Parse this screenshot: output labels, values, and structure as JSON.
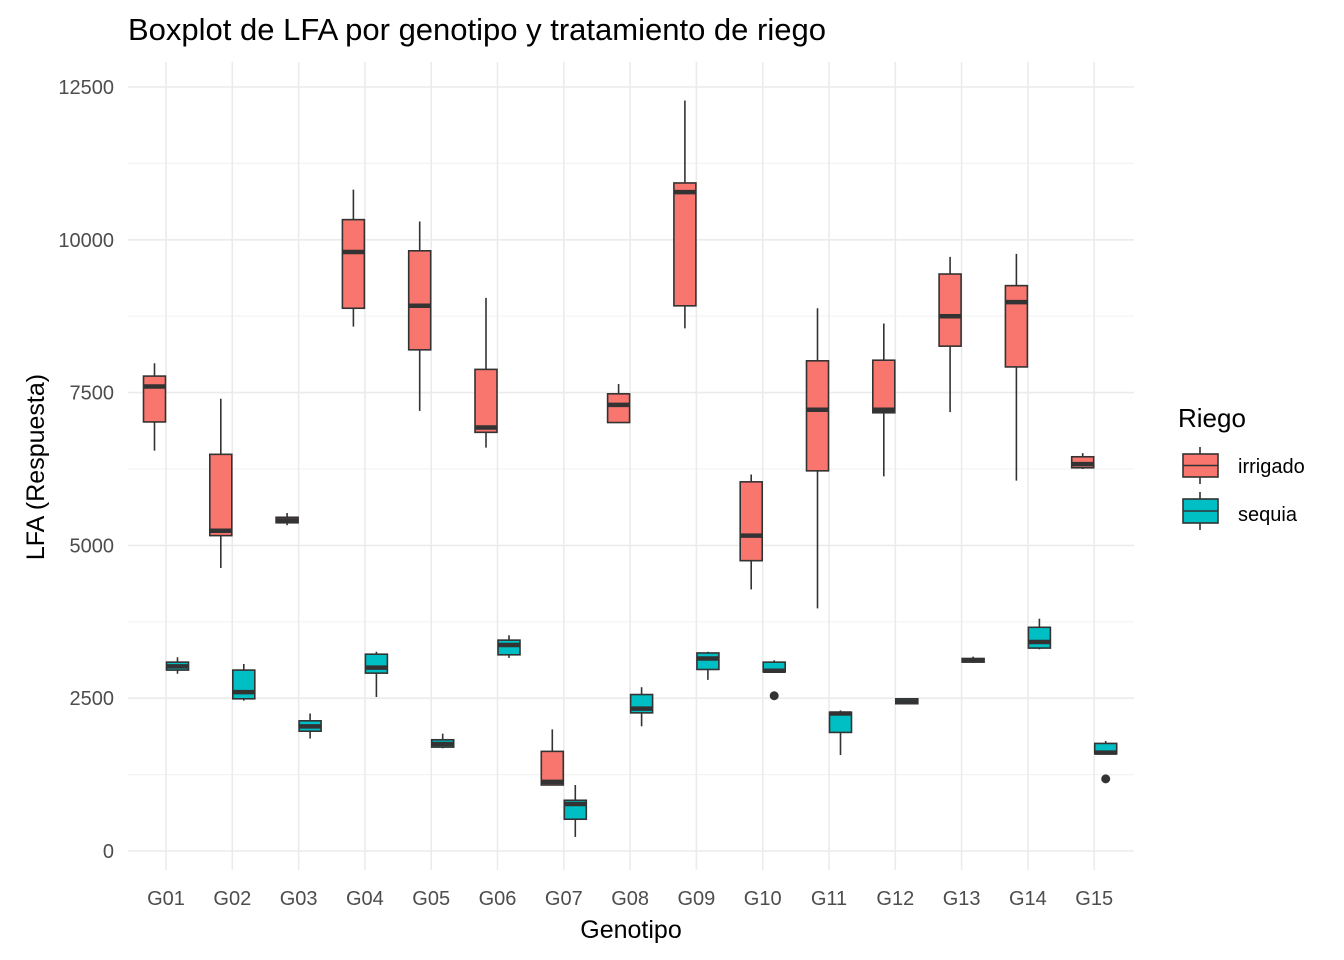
{
  "chart_data": {
    "type": "boxplot",
    "title": "Boxplot de LFA por genotipo y tratamiento de riego",
    "xlabel": "Genotipo",
    "ylabel": "LFA (Respuesta)",
    "ylim": [
      -300,
      13000
    ],
    "yticks": [
      0,
      2500,
      5000,
      7500,
      10000,
      12500
    ],
    "y_tick_labels": [
      "0",
      "2500",
      "5000",
      "7500",
      "10000",
      "12500"
    ],
    "grid": true,
    "legend_position": "right",
    "categories": [
      "G01",
      "G02",
      "G03",
      "G04",
      "G05",
      "G06",
      "G07",
      "G08",
      "G09",
      "G10",
      "G11",
      "G12",
      "G13",
      "G14",
      "G15"
    ],
    "legend": {
      "title": "Riego",
      "entries": [
        {
          "label": "irrigado",
          "color": "#F8766D"
        },
        {
          "label": "sequia",
          "color": "#00BFC4"
        }
      ]
    },
    "colors": {
      "irrigado": "#F8766D",
      "sequia": "#00BFC4",
      "line": "#333333",
      "grid": "#ebebeb"
    },
    "boxes": [
      {
        "category": "G01",
        "group": "irrigado",
        "min": 6550,
        "q1": 7020,
        "median": 7600,
        "q3": 7770,
        "max": 7980,
        "outliers": []
      },
      {
        "category": "G01",
        "group": "sequia",
        "min": 2900,
        "q1": 2960,
        "median": 3020,
        "q3": 3090,
        "max": 3170,
        "outliers": []
      },
      {
        "category": "G02",
        "group": "irrigado",
        "min": 4630,
        "q1": 5160,
        "median": 5240,
        "q3": 6490,
        "max": 7400,
        "outliers": []
      },
      {
        "category": "G02",
        "group": "sequia",
        "min": 2460,
        "q1": 2490,
        "median": 2600,
        "q3": 2960,
        "max": 3060,
        "outliers": []
      },
      {
        "category": "G03",
        "group": "irrigado",
        "min": 5330,
        "q1": 5370,
        "median": 5410,
        "q3": 5460,
        "max": 5530,
        "outliers": []
      },
      {
        "category": "G03",
        "group": "sequia",
        "min": 1840,
        "q1": 1960,
        "median": 2040,
        "q3": 2130,
        "max": 2250,
        "outliers": []
      },
      {
        "category": "G04",
        "group": "irrigado",
        "min": 8580,
        "q1": 8880,
        "median": 9800,
        "q3": 10330,
        "max": 10820,
        "outliers": []
      },
      {
        "category": "G04",
        "group": "sequia",
        "min": 2520,
        "q1": 2910,
        "median": 3000,
        "q3": 3220,
        "max": 3260,
        "outliers": []
      },
      {
        "category": "G05",
        "group": "irrigado",
        "min": 7200,
        "q1": 8200,
        "median": 8920,
        "q3": 9820,
        "max": 10300,
        "outliers": []
      },
      {
        "category": "G05",
        "group": "sequia",
        "min": 1680,
        "q1": 1700,
        "median": 1750,
        "q3": 1820,
        "max": 1920,
        "outliers": []
      },
      {
        "category": "G06",
        "group": "irrigado",
        "min": 6600,
        "q1": 6850,
        "median": 6930,
        "q3": 7880,
        "max": 9050,
        "outliers": []
      },
      {
        "category": "G06",
        "group": "sequia",
        "min": 3160,
        "q1": 3210,
        "median": 3370,
        "q3": 3450,
        "max": 3530,
        "outliers": []
      },
      {
        "category": "G07",
        "group": "irrigado",
        "min": 1080,
        "q1": 1080,
        "median": 1130,
        "q3": 1630,
        "max": 1990,
        "outliers": []
      },
      {
        "category": "G07",
        "group": "sequia",
        "min": 230,
        "q1": 520,
        "median": 770,
        "q3": 830,
        "max": 1080,
        "outliers": []
      },
      {
        "category": "G08",
        "group": "irrigado",
        "min": 7010,
        "q1": 7010,
        "median": 7300,
        "q3": 7480,
        "max": 7640,
        "outliers": []
      },
      {
        "category": "G08",
        "group": "sequia",
        "min": 2040,
        "q1": 2260,
        "median": 2330,
        "q3": 2560,
        "max": 2680,
        "outliers": []
      },
      {
        "category": "G09",
        "group": "irrigado",
        "min": 8550,
        "q1": 8920,
        "median": 10780,
        "q3": 10930,
        "max": 12280,
        "outliers": []
      },
      {
        "category": "G09",
        "group": "sequia",
        "min": 2800,
        "q1": 2970,
        "median": 3150,
        "q3": 3240,
        "max": 3260,
        "outliers": []
      },
      {
        "category": "G10",
        "group": "irrigado",
        "min": 4280,
        "q1": 4750,
        "median": 5160,
        "q3": 6040,
        "max": 6160,
        "outliers": []
      },
      {
        "category": "G10",
        "group": "sequia",
        "min": 2930,
        "q1": 2930,
        "median": 2950,
        "q3": 3090,
        "max": 3120,
        "outliers": [
          2540
        ]
      },
      {
        "category": "G11",
        "group": "irrigado",
        "min": 3970,
        "q1": 6220,
        "median": 7220,
        "q3": 8020,
        "max": 8880,
        "outliers": []
      },
      {
        "category": "G11",
        "group": "sequia",
        "min": 1570,
        "q1": 1940,
        "median": 2250,
        "q3": 2270,
        "max": 2300,
        "outliers": []
      },
      {
        "category": "G12",
        "group": "irrigado",
        "min": 6130,
        "q1": 7170,
        "median": 7220,
        "q3": 8030,
        "max": 8630,
        "outliers": []
      },
      {
        "category": "G12",
        "group": "sequia",
        "min": 2400,
        "q1": 2410,
        "median": 2440,
        "q3": 2490,
        "max": 2500,
        "outliers": []
      },
      {
        "category": "G13",
        "group": "irrigado",
        "min": 7180,
        "q1": 8260,
        "median": 8750,
        "q3": 9440,
        "max": 9720,
        "outliers": []
      },
      {
        "category": "G13",
        "group": "sequia",
        "min": 3080,
        "q1": 3090,
        "median": 3120,
        "q3": 3150,
        "max": 3180,
        "outliers": []
      },
      {
        "category": "G14",
        "group": "irrigado",
        "min": 6060,
        "q1": 7920,
        "median": 8980,
        "q3": 9250,
        "max": 9770,
        "outliers": []
      },
      {
        "category": "G14",
        "group": "sequia",
        "min": 3300,
        "q1": 3320,
        "median": 3420,
        "q3": 3660,
        "max": 3800,
        "outliers": []
      },
      {
        "category": "G15",
        "group": "irrigado",
        "min": 6250,
        "q1": 6270,
        "median": 6330,
        "q3": 6450,
        "max": 6510,
        "outliers": []
      },
      {
        "category": "G15",
        "group": "sequia",
        "min": 1590,
        "q1": 1590,
        "median": 1610,
        "q3": 1760,
        "max": 1800,
        "outliers": [
          1180
        ]
      }
    ]
  }
}
